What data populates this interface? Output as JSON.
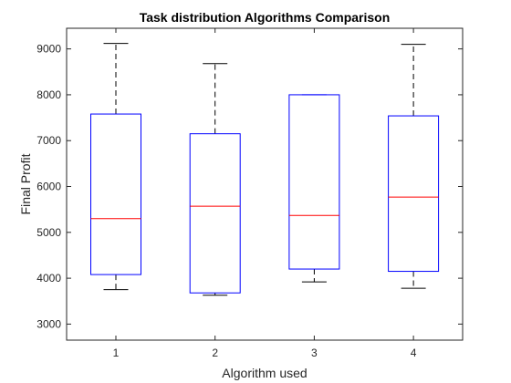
{
  "chart_data": {
    "type": "box",
    "title": "Task distribution Algorithms Comparison",
    "xlabel": "Algorithm used",
    "ylabel": "Final Profit",
    "categories": [
      "1",
      "2",
      "3",
      "4"
    ],
    "boxes": [
      {
        "category": "1",
        "whisker_low": 3750,
        "q1": 4080,
        "median": 5300,
        "q3": 7580,
        "whisker_high": 9120
      },
      {
        "category": "2",
        "whisker_low": 3630,
        "q1": 3680,
        "median": 5570,
        "q3": 7150,
        "whisker_high": 8680
      },
      {
        "category": "3",
        "whisker_low": 3920,
        "q1": 4200,
        "median": 5370,
        "q3": 8000,
        "whisker_high": 8000
      },
      {
        "category": "4",
        "whisker_low": 3780,
        "q1": 4150,
        "median": 5770,
        "q3": 7540,
        "whisker_high": 9100
      }
    ],
    "ylim": [
      2650,
      9450
    ],
    "yticks": [
      3000,
      4000,
      5000,
      6000,
      7000,
      8000,
      9000
    ],
    "grid": false,
    "legend": "none",
    "colors": {
      "box": "#0000ff",
      "median": "#ff0000",
      "whisker": "#000000",
      "axis": "#262626"
    }
  }
}
